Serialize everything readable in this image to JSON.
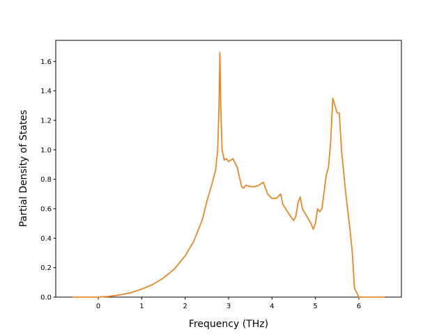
{
  "chart_data": {
    "type": "line",
    "xlabel": "Frequency (THz)",
    "ylabel": "Partial Density of States",
    "color": "#e8862a",
    "x": [
      -0.6,
      0,
      0.25,
      0.5,
      0.75,
      1,
      1.25,
      1.5,
      1.75,
      2,
      2.2,
      2.4,
      2.5,
      2.6,
      2.7,
      2.75,
      2.78,
      2.8,
      2.82,
      2.85,
      2.9,
      2.95,
      3,
      3.1,
      3.2,
      3.3,
      3.35,
      3.4,
      3.5,
      3.6,
      3.7,
      3.8,
      3.9,
      4,
      4.1,
      4.2,
      4.25,
      4.4,
      4.5,
      4.55,
      4.6,
      4.65,
      4.7,
      4.8,
      4.9,
      4.95,
      5,
      5.05,
      5.1,
      5.15,
      5.25,
      5.3,
      5.35,
      5.4,
      5.45,
      5.5,
      5.55,
      5.6,
      5.7,
      5.8,
      5.85,
      5.9,
      6,
      6.6
    ],
    "values": [
      0,
      0,
      0.005,
      0.015,
      0.03,
      0.055,
      0.085,
      0.13,
      0.19,
      0.28,
      0.38,
      0.53,
      0.65,
      0.75,
      0.86,
      1.0,
      1.3,
      1.66,
      1.3,
      1.0,
      0.93,
      0.94,
      0.92,
      0.94,
      0.88,
      0.75,
      0.74,
      0.76,
      0.75,
      0.75,
      0.76,
      0.78,
      0.7,
      0.67,
      0.67,
      0.7,
      0.63,
      0.56,
      0.52,
      0.55,
      0.64,
      0.68,
      0.6,
      0.55,
      0.5,
      0.46,
      0.5,
      0.6,
      0.58,
      0.6,
      0.83,
      0.88,
      1.05,
      1.35,
      1.3,
      1.25,
      1.25,
      1.0,
      0.7,
      0.45,
      0.3,
      0.06,
      0,
      0
    ],
    "xlim": [
      -0.98,
      6.98
    ],
    "ylim": [
      0,
      1.743
    ],
    "xticks": [
      0,
      1,
      2,
      3,
      4,
      5,
      6
    ],
    "yticks": [
      {
        "value": 0,
        "label": "0.0"
      },
      0.2,
      0.4,
      0.6,
      0.8,
      {
        "value": 1,
        "label": "1.0"
      },
      1.2,
      1.4,
      1.6
    ]
  }
}
